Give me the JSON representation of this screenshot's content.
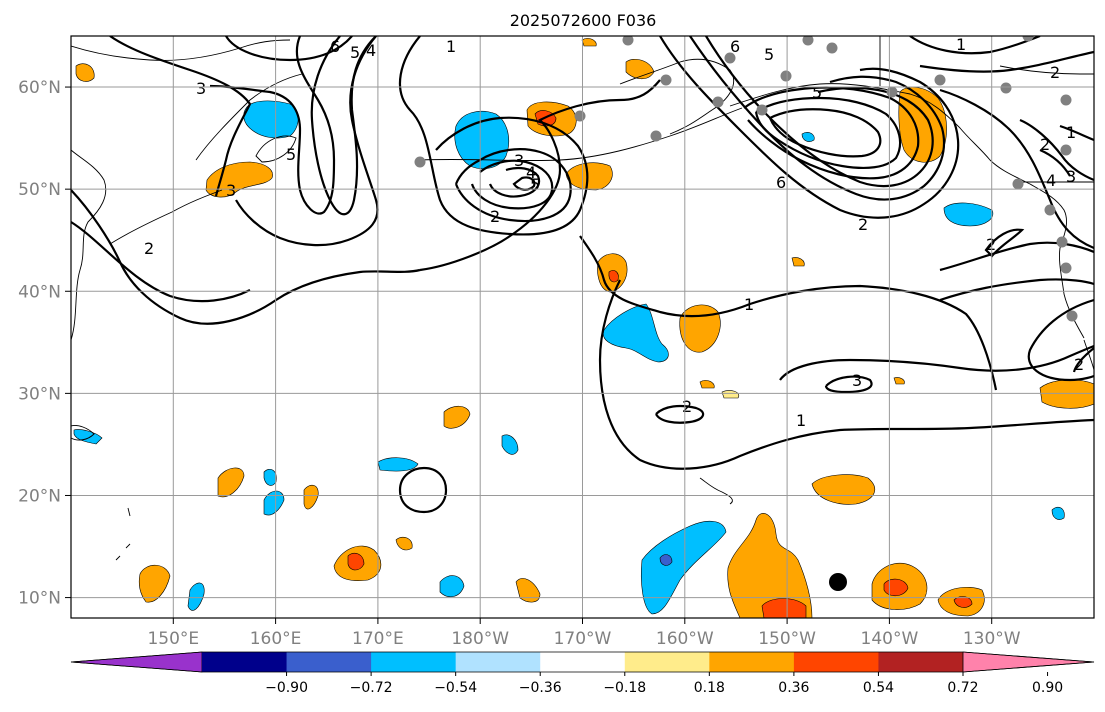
{
  "title": "2025072600 F036",
  "map": {
    "lat_ticks": [
      {
        "value": 60,
        "label": "60°N"
      },
      {
        "value": 50,
        "label": "50°N"
      },
      {
        "value": 40,
        "label": "40°N"
      },
      {
        "value": 30,
        "label": "30°N"
      },
      {
        "value": 20,
        "label": "20°N"
      },
      {
        "value": 10,
        "label": "10°N"
      }
    ],
    "lon_ticks": [
      {
        "value": 150,
        "label": "150°E"
      },
      {
        "value": 160,
        "label": "160°E"
      },
      {
        "value": 170,
        "label": "170°E"
      },
      {
        "value": 180,
        "label": "180°W"
      },
      {
        "value": 190,
        "label": "170°W"
      },
      {
        "value": 200,
        "label": "160°W"
      },
      {
        "value": 210,
        "label": "150°W"
      },
      {
        "value": 220,
        "label": "140°W"
      },
      {
        "value": 230,
        "label": "130°W"
      }
    ],
    "lon_range": [
      140,
      240
    ],
    "lat_range": [
      8,
      65
    ],
    "grid": true,
    "contour_labels": [
      "6",
      "5",
      "4",
      "1",
      "3",
      "5",
      "2",
      "2",
      "3",
      "4",
      "5",
      "3",
      "2",
      "6",
      "5",
      "6",
      "1",
      "2",
      "1",
      "2",
      "4",
      "3",
      "5",
      "2",
      "2",
      "3",
      "2",
      "1",
      "1"
    ]
  },
  "colorbar": {
    "colors": [
      "#9932cc",
      "#00008b",
      "#3a5fcd",
      "#00bfff",
      "#b0e2ff",
      "#ffffff",
      "#ffec8b",
      "#ffa500",
      "#ff4500",
      "#b22222",
      "#ff82ab"
    ],
    "tick_labels": [
      "−0.90",
      "−0.72",
      "−0.54",
      "−0.36",
      "−0.18",
      "0.18",
      "0.36",
      "0.54",
      "0.72",
      "0.90"
    ]
  }
}
